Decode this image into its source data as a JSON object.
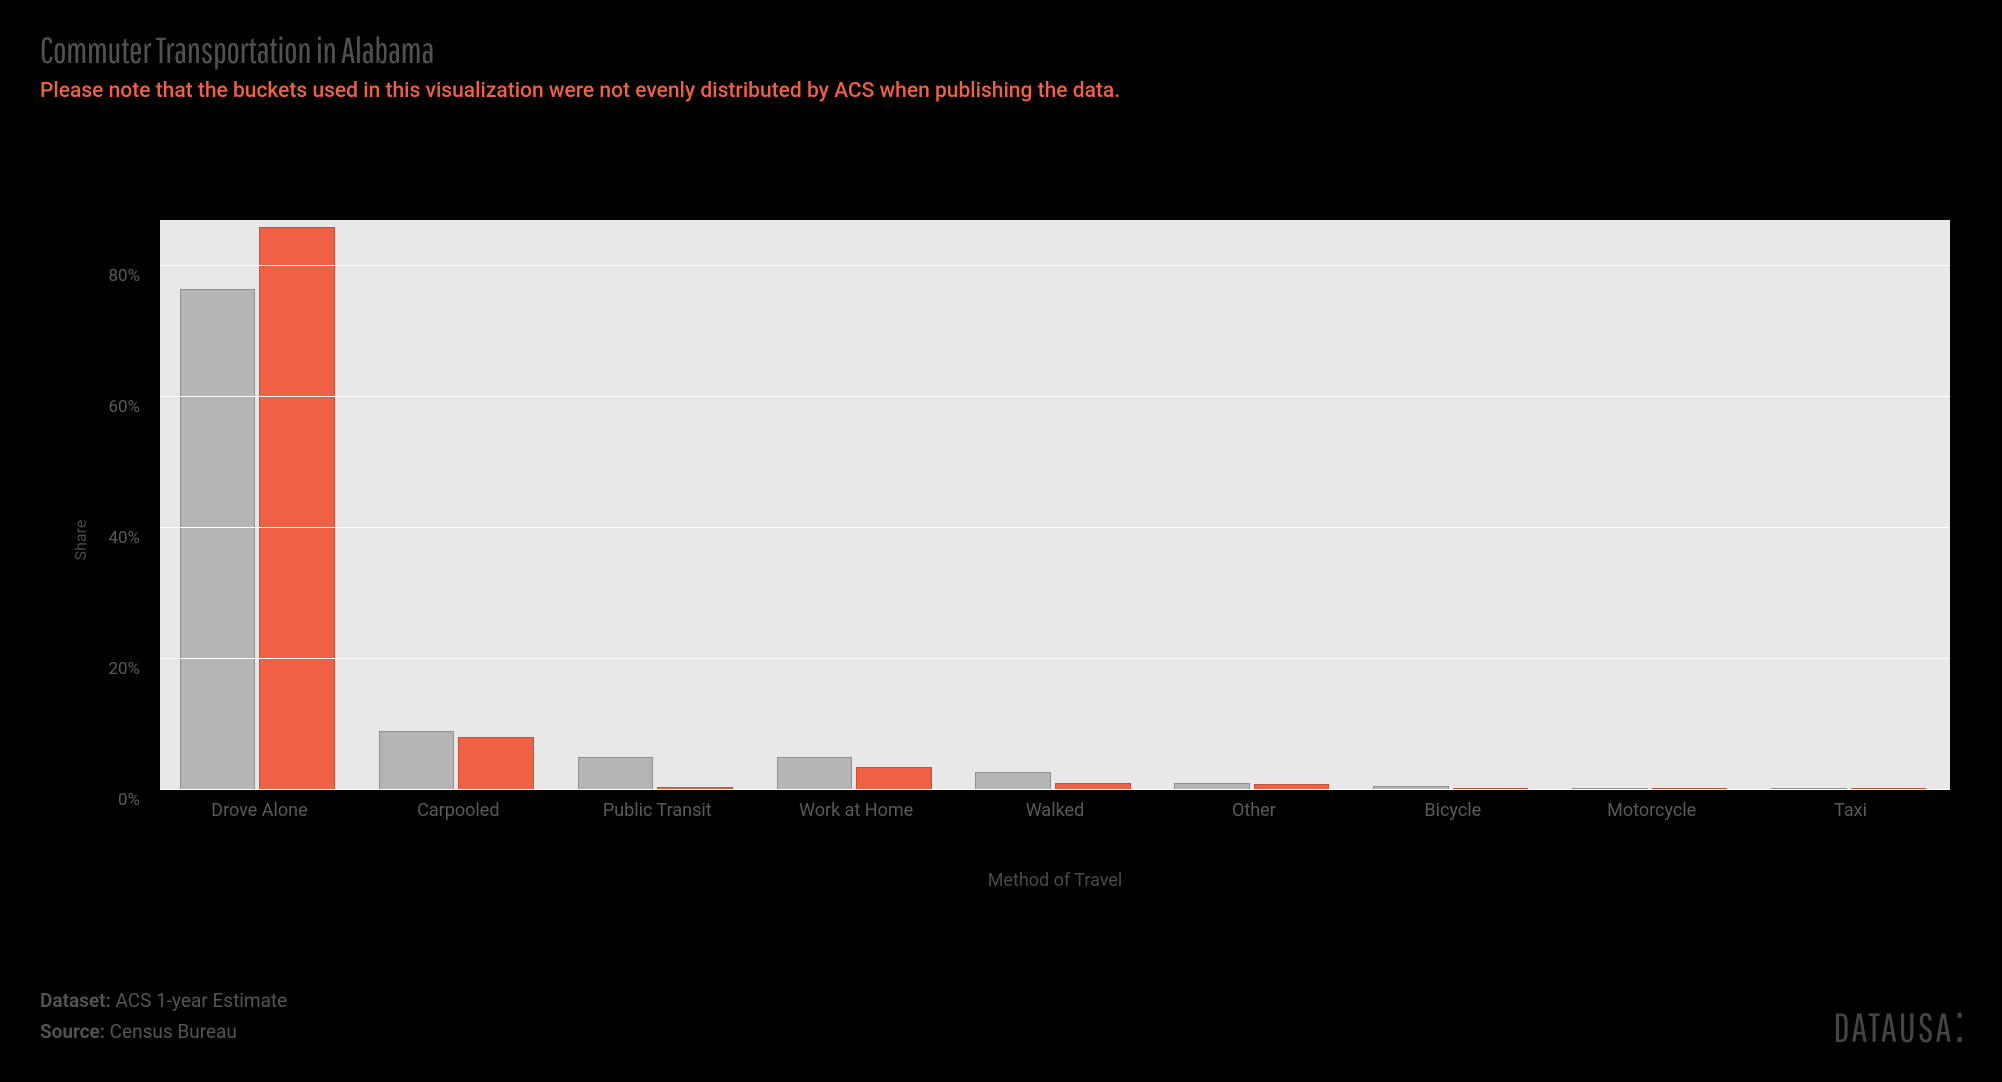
{
  "title": "Commuter Transportation in Alabama",
  "subtitle": "Please note that the buckets used in this visualization were not evenly distributed by ACS when publishing the data.",
  "chart": {
    "type": "bar",
    "ylabel": "Share",
    "xlabel": "Method of Travel",
    "ymax": 87,
    "plot_bg": "#e8e8e8",
    "grid_color": "#ffffff",
    "yticks": [
      {
        "v": 0,
        "label": "0%"
      },
      {
        "v": 20,
        "label": "20%"
      },
      {
        "v": 40,
        "label": "40%"
      },
      {
        "v": 60,
        "label": "60%"
      },
      {
        "v": 80,
        "label": "80%"
      }
    ],
    "series_colors": [
      "#b4b5b4",
      "#ef6145"
    ],
    "series_border_colors": [
      "#8f8f8f",
      "#c94f37"
    ],
    "categories": [
      {
        "label": "Drove Alone",
        "v1": 76.5,
        "v2": 86.0
      },
      {
        "label": "Carpooled",
        "v1": 9.0,
        "v2": 8.1
      },
      {
        "label": "Public Transit",
        "v1": 5.0,
        "v2": 0.5
      },
      {
        "label": "Work at Home",
        "v1": 5.0,
        "v2": 3.5
      },
      {
        "label": "Walked",
        "v1": 2.7,
        "v2": 1.1
      },
      {
        "label": "Other",
        "v1": 1.0,
        "v2": 0.9
      },
      {
        "label": "Bicycle",
        "v1": 0.6,
        "v2": 0.2
      },
      {
        "label": "Motorcycle",
        "v1": 0.2,
        "v2": 0.2
      },
      {
        "label": "Taxi",
        "v1": 0.1,
        "v2": 0.1
      }
    ]
  },
  "footer": {
    "dataset_label": "Dataset:",
    "dataset_value": "ACS 1-year Estimate",
    "source_label": "Source:",
    "source_value": "Census Bureau"
  },
  "brand": {
    "part1": "DATA",
    "part2": "USA"
  }
}
